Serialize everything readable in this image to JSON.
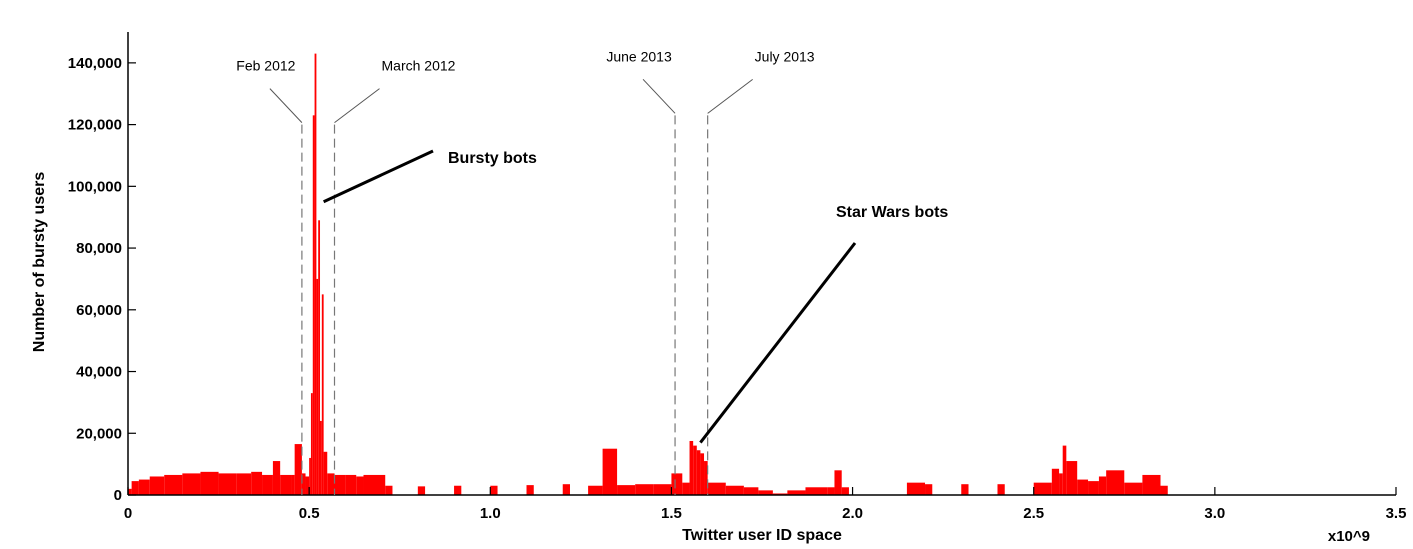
{
  "chart_data": {
    "type": "bar",
    "xlabel": "Twitter user ID space",
    "ylabel": "Number of bursty users",
    "x_multiplier_label": "x10^9",
    "xlim": [
      0,
      3.5
    ],
    "ylim": [
      0,
      150000
    ],
    "x_ticks": [
      "0",
      "0.5",
      "1.0",
      "1.5",
      "2.0",
      "2.5",
      "3.0",
      "3.5"
    ],
    "x_tick_values": [
      0,
      0.5,
      1.0,
      1.5,
      2.0,
      2.5,
      3.0,
      3.5
    ],
    "y_ticks": [
      "0",
      "20,000",
      "40,000",
      "60,000",
      "80,000",
      "100,000",
      "120,000",
      "140,000"
    ],
    "y_tick_values": [
      0,
      20000,
      40000,
      60000,
      80000,
      100000,
      120000,
      140000
    ],
    "bar_color": "#ff0000",
    "bins": [
      {
        "x": 0.0,
        "y": 2000
      },
      {
        "x": 0.01,
        "y": 4500
      },
      {
        "x": 0.03,
        "y": 5000
      },
      {
        "x": 0.06,
        "y": 6000
      },
      {
        "x": 0.1,
        "y": 6500
      },
      {
        "x": 0.15,
        "y": 7000
      },
      {
        "x": 0.2,
        "y": 7500
      },
      {
        "x": 0.25,
        "y": 7000
      },
      {
        "x": 0.3,
        "y": 7000
      },
      {
        "x": 0.34,
        "y": 7500
      },
      {
        "x": 0.37,
        "y": 6500
      },
      {
        "x": 0.4,
        "y": 11000
      },
      {
        "x": 0.42,
        "y": 6500
      },
      {
        "x": 0.45,
        "y": 6500
      },
      {
        "x": 0.46,
        "y": 16500
      },
      {
        "x": 0.48,
        "y": 7000
      },
      {
        "x": 0.49,
        "y": 6000
      },
      {
        "x": 0.5,
        "y": 12000
      },
      {
        "x": 0.505,
        "y": 33000
      },
      {
        "x": 0.51,
        "y": 123000
      },
      {
        "x": 0.515,
        "y": 143000
      },
      {
        "x": 0.52,
        "y": 70000
      },
      {
        "x": 0.525,
        "y": 89000
      },
      {
        "x": 0.53,
        "y": 24000
      },
      {
        "x": 0.535,
        "y": 65000
      },
      {
        "x": 0.54,
        "y": 14000
      },
      {
        "x": 0.55,
        "y": 7000
      },
      {
        "x": 0.57,
        "y": 6500
      },
      {
        "x": 0.6,
        "y": 6500
      },
      {
        "x": 0.63,
        "y": 6000
      },
      {
        "x": 0.65,
        "y": 6500
      },
      {
        "x": 0.71,
        "y": 3000
      },
      {
        "x": 0.8,
        "y": 2800
      },
      {
        "x": 0.9,
        "y": 3000
      },
      {
        "x": 1.0,
        "y": 3000
      },
      {
        "x": 1.1,
        "y": 3200
      },
      {
        "x": 1.2,
        "y": 3500
      },
      {
        "x": 1.27,
        "y": 3000
      },
      {
        "x": 1.31,
        "y": 15000
      },
      {
        "x": 1.35,
        "y": 3200
      },
      {
        "x": 1.4,
        "y": 3500
      },
      {
        "x": 1.45,
        "y": 3500
      },
      {
        "x": 1.5,
        "y": 7000
      },
      {
        "x": 1.53,
        "y": 4000
      },
      {
        "x": 1.55,
        "y": 17500
      },
      {
        "x": 1.56,
        "y": 16000
      },
      {
        "x": 1.57,
        "y": 14500
      },
      {
        "x": 1.58,
        "y": 13500
      },
      {
        "x": 1.59,
        "y": 11000
      },
      {
        "x": 1.6,
        "y": 4000
      },
      {
        "x": 1.65,
        "y": 3000
      },
      {
        "x": 1.7,
        "y": 2500
      },
      {
        "x": 1.74,
        "y": 1500
      },
      {
        "x": 1.78,
        "y": 500
      },
      {
        "x": 1.82,
        "y": 1500
      },
      {
        "x": 1.87,
        "y": 2500
      },
      {
        "x": 1.93,
        "y": 2500
      },
      {
        "x": 1.95,
        "y": 8000
      },
      {
        "x": 1.97,
        "y": 2500
      },
      {
        "x": 2.15,
        "y": 4000
      },
      {
        "x": 2.2,
        "y": 3500
      },
      {
        "x": 2.3,
        "y": 3500
      },
      {
        "x": 2.4,
        "y": 3500
      },
      {
        "x": 2.5,
        "y": 4000
      },
      {
        "x": 2.55,
        "y": 8500
      },
      {
        "x": 2.57,
        "y": 7000
      },
      {
        "x": 2.58,
        "y": 16000
      },
      {
        "x": 2.59,
        "y": 11000
      },
      {
        "x": 2.62,
        "y": 5000
      },
      {
        "x": 2.65,
        "y": 4500
      },
      {
        "x": 2.68,
        "y": 6000
      },
      {
        "x": 2.7,
        "y": 8000
      },
      {
        "x": 2.75,
        "y": 4000
      },
      {
        "x": 2.8,
        "y": 6500
      },
      {
        "x": 2.85,
        "y": 3000
      }
    ],
    "date_markers": [
      {
        "label": "Feb 2012",
        "x": 0.48,
        "line_top": 120000
      },
      {
        "label": "March 2012",
        "x": 0.57,
        "line_top": 120000
      },
      {
        "label": "June 2013",
        "x": 1.51,
        "line_top": 123000
      },
      {
        "label": "July 2013",
        "x": 1.6,
        "line_top": 123000
      }
    ],
    "annotations": [
      {
        "label": "Bursty bots",
        "points_to": {
          "x": 0.54,
          "y": 95000
        }
      },
      {
        "label": "Star Wars bots",
        "points_to": {
          "x": 1.58,
          "y": 17000
        }
      }
    ]
  }
}
